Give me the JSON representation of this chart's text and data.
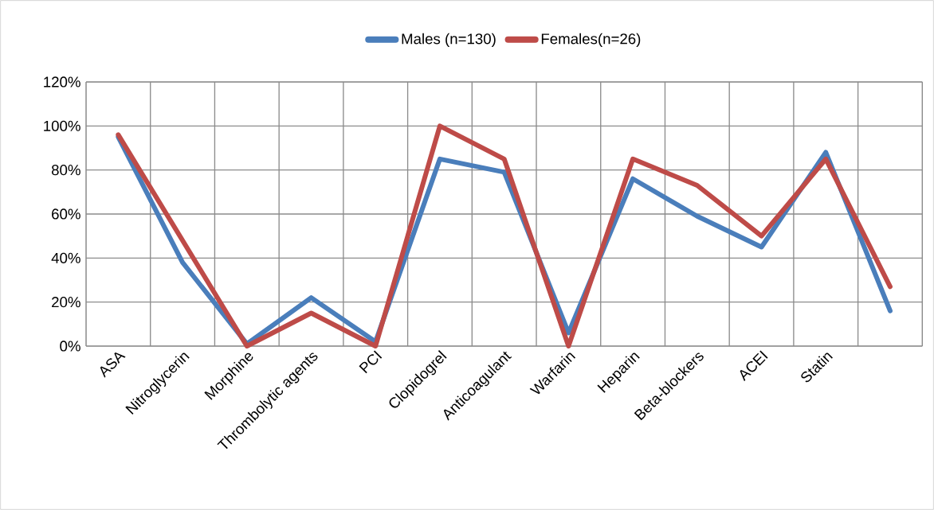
{
  "chart_data": {
    "type": "line",
    "categories": [
      "ASA",
      "Nitroglycerin",
      "Morphine",
      "Thrombolytic agents",
      "PCI",
      "Clopidogrel",
      "Anticoagulant",
      "Warfarin",
      "Heparin",
      "Beta-blockers",
      "ACEI",
      "Statin",
      null
    ],
    "series": [
      {
        "name": "Males  (n=130)",
        "color": "#4a7ebb",
        "values": [
          95,
          38,
          1,
          22,
          2,
          85,
          79,
          6,
          76,
          59,
          45,
          88,
          16
        ]
      },
      {
        "name": "Females(n=26)",
        "color": "#be4b48",
        "values": [
          96,
          48,
          0,
          15,
          0,
          100,
          85,
          0,
          85,
          73,
          50,
          85,
          27
        ]
      }
    ],
    "ylim": [
      0,
      120
    ],
    "yticks": [
      {
        "value": 0,
        "label": "0%"
      },
      {
        "value": 20,
        "label": "20%"
      },
      {
        "value": 40,
        "label": "40%"
      },
      {
        "value": 60,
        "label": "60%"
      },
      {
        "value": 80,
        "label": "80%"
      },
      {
        "value": 100,
        "label": "100%"
      },
      {
        "value": 120,
        "label": "120%"
      }
    ],
    "grid": true,
    "legend": "top",
    "marker": "none",
    "line_style": "solid"
  }
}
